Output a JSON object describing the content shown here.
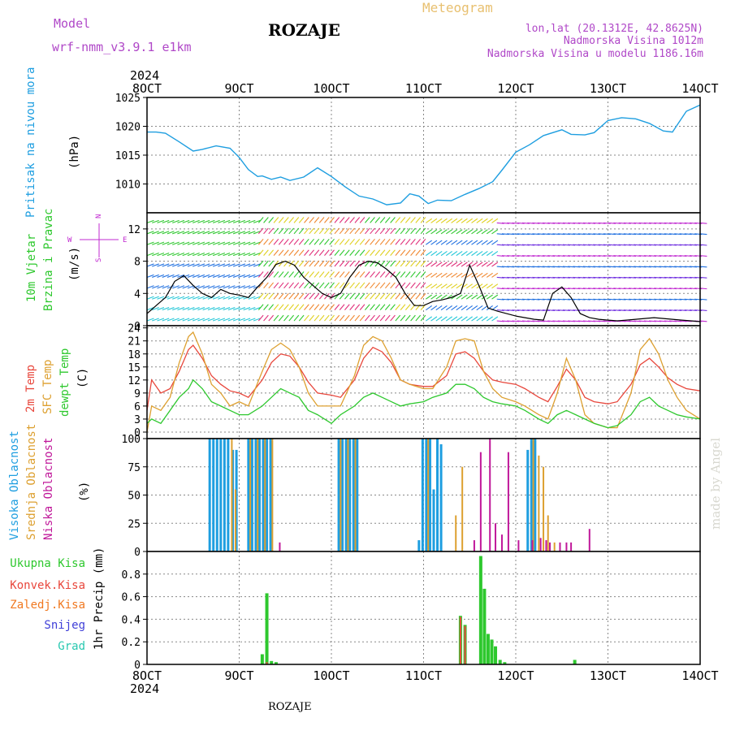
{
  "header": {
    "model_label": "Model",
    "model_name": "wrf-nmm_v3.9.1 e1km",
    "station": "ROZAJE",
    "product": "Meteogram",
    "lonlat": "lon,lat (20.1312E, 42.8625N)",
    "elev": "Nadmorska Visina 1012m",
    "elev_model": "Nadmorska Visina u modelu 1186.16m",
    "footer_station": "ROZAJE",
    "credit": "made by Angel"
  },
  "colors": {
    "pressure": "#1e9ee0",
    "t2m": "#e8473c",
    "sfc": "#dda030",
    "dewpt": "#2ec82e",
    "high_cloud": "#1e9ee0",
    "mid_cloud": "#dda030",
    "low_cloud": "#c0189a",
    "total_precip": "#2ec82e",
    "conv_precip": "#e8473c",
    "frozen": "#f07820",
    "snow": "#4040d8",
    "grad": "#28c8b0",
    "wind_magenta": "#c028d0",
    "grid": "#888888"
  },
  "chart_data": {
    "type": "line",
    "time_axis": {
      "year": "2024",
      "ticks": [
        "8OCT",
        "9OCT",
        "10OCT",
        "11OCT",
        "12OCT",
        "13OCT",
        "14OCT"
      ],
      "range_days": [
        8,
        14
      ]
    },
    "panels": [
      {
        "id": "pressure",
        "type": "line",
        "ylabel_left": "Pritisak na nivou mora",
        "unit": "(hPa)",
        "ylim": [
          1005,
          1025
        ],
        "yticks": [
          1010,
          1015,
          1020,
          1025
        ],
        "series": [
          {
            "x": [
              8.0,
              8.1,
              8.2,
              8.35,
              8.5,
              8.6,
              8.75,
              8.9,
              9.0,
              9.1,
              9.2,
              9.25,
              9.35,
              9.45,
              9.55,
              9.7,
              9.85,
              10.0,
              10.15,
              10.3,
              10.45,
              10.6,
              10.75,
              10.85,
              10.95,
              11.05,
              11.15,
              11.3,
              11.45,
              11.6,
              11.75,
              11.85,
              12.0,
              12.15,
              12.3,
              12.5,
              12.6,
              12.75,
              12.85,
              13.0,
              13.15,
              13.3,
              13.45,
              13.6,
              13.7,
              13.85,
              14.0
            ],
            "y": [
              1019,
              1019,
              1018.8,
              1017.3,
              1015.7,
              1016,
              1016.6,
              1016.2,
              1014.6,
              1012.5,
              1011.3,
              1011.4,
              1010.8,
              1011.2,
              1010.6,
              1011.2,
              1012.8,
              1011.3,
              1009.5,
              1007.9,
              1007.4,
              1006.4,
              1006.7,
              1008.3,
              1007.9,
              1006.6,
              1007.2,
              1007.1,
              1008.2,
              1009.2,
              1010.4,
              1012.4,
              1015.5,
              1016.8,
              1018.4,
              1019.4,
              1018.6,
              1018.5,
              1018.9,
              1021,
              1021.5,
              1021.3,
              1020.5,
              1019.2,
              1019,
              1022.6,
              1023.7
            ]
          }
        ]
      },
      {
        "id": "wind",
        "type": "line",
        "ylabel_left": [
          "10m Vjetar",
          "Brzina i Pravac"
        ],
        "unit": "(m/s)",
        "compass": {
          "n": "N",
          "s": "S",
          "e": "E",
          "w": "W"
        },
        "ylim": [
          0,
          14
        ],
        "yticks": [
          0,
          4,
          8,
          12
        ],
        "series": [
          {
            "name": "speed",
            "x": [
              8.0,
              8.1,
              8.2,
              8.3,
              8.4,
              8.5,
              8.6,
              8.7,
              8.8,
              8.9,
              9.0,
              9.1,
              9.2,
              9.3,
              9.4,
              9.5,
              9.6,
              9.7,
              9.8,
              9.9,
              10.0,
              10.1,
              10.2,
              10.3,
              10.4,
              10.5,
              10.6,
              10.7,
              10.8,
              10.9,
              11.0,
              11.1,
              11.2,
              11.3,
              11.4,
              11.5,
              11.6,
              11.7,
              11.8,
              11.9,
              12.0,
              12.1,
              12.2,
              12.3,
              12.4,
              12.5,
              12.6,
              12.7,
              12.8,
              12.9,
              13.0,
              13.1,
              13.2,
              13.3,
              13.4,
              13.5,
              13.6,
              13.7,
              13.8,
              13.9,
              14.0
            ],
            "y": [
              1.5,
              2.5,
              3.5,
              5.5,
              6.2,
              5,
              4,
              3.5,
              4.5,
              4,
              3.8,
              3.5,
              4.8,
              6,
              7.6,
              8,
              7.5,
              6,
              5,
              4,
              3.5,
              4,
              6,
              7.5,
              8,
              7.8,
              7,
              6,
              4,
              2.5,
              2.5,
              3,
              3.2,
              3.5,
              4,
              7.5,
              5,
              2.2,
              1.8,
              1.5,
              1.2,
              1,
              0.8,
              0.7,
              4,
              4.8,
              3.5,
              1.5,
              1,
              0.8,
              0.7,
              0.6,
              0.7,
              0.8,
              0.9,
              1,
              0.9,
              0.8,
              0.7,
              0.6,
              0.5
            ]
          }
        ]
      },
      {
        "id": "temperature",
        "type": "line",
        "ylabel_left": [
          "2m Temp",
          "SFC Temp",
          "dewpt Temp"
        ],
        "unit": "(C)",
        "ylim": [
          -1.5,
          24.5
        ],
        "yticks": [
          0,
          3,
          6,
          9,
          12,
          15,
          18,
          21,
          24
        ],
        "series": [
          {
            "name": "2m Temp",
            "x": [
              8.0,
              8.05,
              8.15,
              8.25,
              8.35,
              8.45,
              8.5,
              8.6,
              8.7,
              8.8,
              8.9,
              9.0,
              9.1,
              9.25,
              9.35,
              9.45,
              9.55,
              9.65,
              9.75,
              9.85,
              10.0,
              10.1,
              10.25,
              10.35,
              10.45,
              10.55,
              10.65,
              10.75,
              10.85,
              11.0,
              11.1,
              11.25,
              11.35,
              11.45,
              11.55,
              11.65,
              11.75,
              11.85,
              12.0,
              12.1,
              12.25,
              12.35,
              12.45,
              12.55,
              12.65,
              12.75,
              12.85,
              13.0,
              13.1,
              13.25,
              13.35,
              13.45,
              13.55,
              13.65,
              13.75,
              13.85,
              14.0
            ],
            "y": [
              5,
              12,
              9,
              10,
              14,
              19,
              20,
              17,
              13,
              11,
              9.5,
              9,
              8,
              12,
              16,
              18,
              17.5,
              15,
              11.5,
              9,
              8.5,
              8,
              12,
              17,
              19.5,
              18.5,
              16,
              12,
              11,
              10.5,
              10.5,
              13,
              18,
              18.5,
              17,
              14,
              12,
              11.5,
              11,
              10,
              8,
              7,
              10.5,
              14.5,
              12,
              8,
              7,
              6.5,
              7,
              11,
              15.5,
              17,
              15,
              12.5,
              11,
              10,
              9.5
            ]
          },
          {
            "name": "SFC Temp",
            "x": [
              8.0,
              8.05,
              8.15,
              8.25,
              8.35,
              8.45,
              8.5,
              8.6,
              8.7,
              8.8,
              8.9,
              9.0,
              9.1,
              9.25,
              9.35,
              9.45,
              9.55,
              9.65,
              9.75,
              9.85,
              10.0,
              10.1,
              10.25,
              10.35,
              10.45,
              10.55,
              10.65,
              10.75,
              10.85,
              11.0,
              11.1,
              11.25,
              11.35,
              11.45,
              11.55,
              11.65,
              11.75,
              11.85,
              12.0,
              12.1,
              12.25,
              12.35,
              12.45,
              12.55,
              12.65,
              12.75,
              12.85,
              13.0,
              13.1,
              13.25,
              13.35,
              13.45,
              13.55,
              13.65,
              13.75,
              13.85,
              14.0
            ],
            "y": [
              0,
              6,
              5,
              8,
              16,
              22,
              23,
              18,
              11,
              9,
              6,
              7,
              6,
              14,
              19,
              20.5,
              19,
              15,
              9,
              6,
              6,
              6,
              13,
              20,
              22,
              21,
              17,
              12,
              11,
              10,
              10,
              15,
              21,
              21.5,
              21,
              14,
              10,
              8,
              7,
              6,
              4,
              3,
              9,
              17,
              12,
              4,
              2,
              1,
              1,
              9,
              19,
              21.5,
              18,
              12,
              8,
              5,
              3
            ]
          },
          {
            "name": "dewpt Temp",
            "x": [
              8.0,
              8.05,
              8.15,
              8.25,
              8.35,
              8.45,
              8.5,
              8.6,
              8.7,
              8.8,
              8.9,
              9.0,
              9.1,
              9.25,
              9.35,
              9.45,
              9.55,
              9.65,
              9.75,
              9.85,
              10.0,
              10.1,
              10.25,
              10.35,
              10.45,
              10.55,
              10.65,
              10.75,
              10.85,
              11.0,
              11.1,
              11.25,
              11.35,
              11.45,
              11.55,
              11.65,
              11.75,
              11.85,
              12.0,
              12.1,
              12.25,
              12.35,
              12.45,
              12.55,
              12.65,
              12.75,
              12.85,
              13.0,
              13.1,
              13.25,
              13.35,
              13.45,
              13.55,
              13.65,
              13.75,
              13.85,
              14.0
            ],
            "y": [
              2,
              3,
              2,
              5,
              8,
              10,
              12,
              10,
              7,
              6,
              5,
              4,
              4,
              6,
              8,
              10,
              9,
              8,
              5,
              4,
              2,
              4,
              6,
              8,
              9,
              8,
              7,
              6,
              6.5,
              7,
              8,
              9,
              11,
              11,
              10,
              8,
              7,
              6.5,
              6,
              5,
              3,
              2,
              4,
              5,
              4,
              3,
              2,
              1,
              1.5,
              4,
              7,
              8,
              6,
              5,
              4,
              3.5,
              3
            ]
          }
        ]
      },
      {
        "id": "cloud",
        "type": "bar",
        "ylabel_left": [
          "Visoka Oblacnost",
          "Srednja Oblacnost",
          "Niska Oblacnost"
        ],
        "unit": "(%)",
        "ylim": [
          0,
          100
        ],
        "yticks": [
          0,
          25,
          50,
          75,
          100
        ],
        "high": {
          "x": [
            8.68,
            8.72,
            8.76,
            8.8,
            8.84,
            8.88,
            8.93,
            8.97,
            9.1,
            9.14,
            9.18,
            9.22,
            9.26,
            9.3,
            9.34,
            10.08,
            10.12,
            10.16,
            10.2,
            10.24,
            10.28,
            10.95,
            10.99,
            11.03,
            11.07,
            11.11,
            11.15,
            11.19,
            12.13,
            12.17,
            12.21
          ],
          "y": [
            100,
            100,
            100,
            100,
            100,
            100,
            90,
            90,
            100,
            100,
            100,
            100,
            100,
            100,
            100,
            100,
            100,
            100,
            100,
            100,
            100,
            10,
            100,
            100,
            100,
            55,
            100,
            95,
            90,
            100,
            100
          ]
        },
        "mid": {
          "x": [
            8.92,
            8.96,
            9.12,
            9.2,
            9.28,
            9.36,
            10.1,
            10.18,
            10.26,
            11.05,
            11.35,
            11.42,
            12.19,
            12.25,
            12.3,
            12.35,
            12.42
          ],
          "y": [
            100,
            55,
            100,
            100,
            100,
            100,
            100,
            100,
            100,
            100,
            32,
            75,
            100,
            85,
            75,
            32,
            8
          ]
        },
        "low": {
          "x": [
            9.44,
            11.55,
            11.62,
            11.72,
            11.78,
            11.85,
            11.92,
            12.03,
            12.18,
            12.27,
            12.33,
            12.37,
            12.48,
            12.55,
            12.6,
            12.8
          ],
          "y": [
            8,
            10,
            88,
            100,
            25,
            15,
            88,
            10,
            10,
            12,
            10,
            8,
            8,
            8,
            8,
            20
          ]
        }
      },
      {
        "id": "precip",
        "type": "bar",
        "ylabel_left": [
          "Ukupna Kisa",
          "Konvek.Kisa",
          "Zaledj.Kisa",
          "Snijeg",
          "Grad"
        ],
        "unit": "1hr Precip (mm)",
        "ylim": [
          0,
          1
        ],
        "yticks": [
          0,
          0.2,
          0.4,
          0.6,
          0.8
        ],
        "total": {
          "x": [
            9.25,
            9.3,
            9.35,
            9.4,
            11.4,
            11.45,
            11.62,
            11.66,
            11.7,
            11.74,
            11.78,
            11.83,
            11.88,
            12.64
          ],
          "y": [
            0.09,
            0.63,
            0.03,
            0.02,
            0.43,
            0.35,
            0.96,
            0.67,
            0.27,
            0.22,
            0.16,
            0.04,
            0.02,
            0.04
          ]
        },
        "conv": {
          "x": [
            9.3,
            11.4,
            11.45
          ],
          "y": [
            0.02,
            0.42,
            0.34
          ]
        }
      }
    ]
  }
}
